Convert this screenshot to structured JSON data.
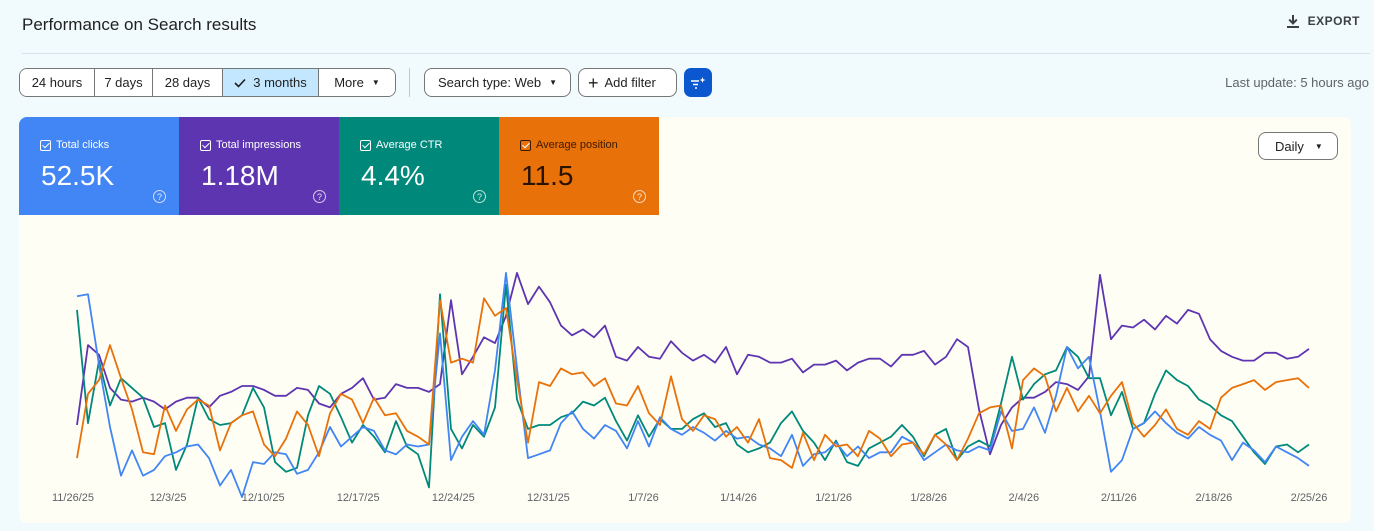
{
  "header": {
    "title": "Performance on Search results",
    "export_label": "EXPORT"
  },
  "toolbar": {
    "ranges": [
      {
        "label": "24 hours",
        "active": false
      },
      {
        "label": "7 days",
        "active": false
      },
      {
        "label": "28 days",
        "active": false
      },
      {
        "label": "3 months",
        "active": true
      },
      {
        "label": "More",
        "active": false
      }
    ],
    "search_type": "Search type: Web",
    "add_filter": "Add filter",
    "last_update": "Last update: 5 hours ago"
  },
  "metrics": [
    {
      "label": "Total clicks",
      "value": "52.5K",
      "color": "#4285f4"
    },
    {
      "label": "Total impressions",
      "value": "1.18M",
      "color": "#5e35b1"
    },
    {
      "label": "Average CTR",
      "value": "4.4%",
      "color": "#00897b"
    },
    {
      "label": "Average position",
      "value": "11.5",
      "color": "#e8710a"
    }
  ],
  "granularity": "Daily",
  "chart_data": {
    "type": "line",
    "x_tick_labels": [
      "11/26/25",
      "12/3/25",
      "12/10/25",
      "12/17/25",
      "12/24/25",
      "12/31/25",
      "1/7/26",
      "1/14/26",
      "1/21/26",
      "1/28/26",
      "2/4/26",
      "2/11/26",
      "2/18/26",
      "2/25/26"
    ],
    "y_axis_labels_shown": false,
    "grid": false,
    "series": [
      {
        "name": "Total impressions",
        "color": "#5e35b1",
        "values": [
          80,
          39,
          44,
          61,
          67,
          68,
          66,
          68,
          72,
          68,
          66,
          66,
          71,
          65,
          63,
          60,
          60,
          62,
          65,
          65,
          61,
          62,
          69,
          71,
          64,
          61,
          56,
          67,
          66,
          59,
          61,
          61,
          63,
          59,
          16,
          54,
          45,
          35,
          38,
          24,
          2,
          18,
          9,
          17,
          29,
          34,
          31,
          35,
          29,
          45,
          47,
          40,
          45,
          46,
          37,
          43,
          47,
          44,
          48,
          40,
          54,
          44,
          45,
          48,
          48,
          46,
          53,
          49,
          49,
          47,
          52,
          48,
          46,
          46,
          50,
          44,
          44,
          42,
          49,
          45,
          36,
          40,
          72,
          95,
          80,
          71,
          66,
          66,
          63,
          58,
          59,
          62,
          55,
          3,
          36,
          29,
          30,
          26,
          31,
          24,
          28,
          21,
          23,
          36,
          42,
          45,
          47,
          47,
          43,
          43,
          46,
          45,
          41
        ]
      },
      {
        "name": "Average CTR",
        "color": "#00897b",
        "values": [
          21,
          79,
          47,
          70,
          56,
          61,
          66,
          81,
          79,
          103,
          90,
          66,
          77,
          80,
          79,
          75,
          61,
          71,
          99,
          104,
          102,
          75,
          60,
          64,
          76,
          89,
          80,
          86,
          94,
          78,
          91,
          95,
          112,
          13,
          82,
          92,
          80,
          86,
          71,
          8,
          67,
          82,
          80,
          80,
          76,
          74,
          68,
          70,
          66,
          78,
          88,
          75,
          86,
          77,
          82,
          82,
          77,
          74,
          81,
          79,
          90,
          94,
          92,
          89,
          79,
          73,
          83,
          89,
          98,
          88,
          99,
          101,
          92,
          89,
          86,
          80,
          86,
          96,
          85,
          82,
          98,
          91,
          88,
          91,
          69,
          45,
          67,
          59,
          54,
          52,
          40,
          45,
          56,
          56,
          75,
          63,
          82,
          79,
          64,
          52,
          57,
          60,
          67,
          70,
          75,
          78,
          86,
          94,
          100,
          91,
          90,
          94,
          90
        ]
      },
      {
        "name": "Total clicks",
        "color": "#4285f4",
        "values": [
          14,
          13,
          49,
          81,
          106,
          93,
          106,
          103,
          96,
          94,
          91,
          90,
          97,
          111,
          103,
          117,
          99,
          100,
          94,
          95,
          105,
          103,
          94,
          81,
          91,
          86,
          81,
          83,
          93,
          95,
          90,
          91,
          90,
          33,
          98,
          86,
          78,
          85,
          52,
          2,
          51,
          97,
          95,
          93,
          79,
          73,
          82,
          87,
          80,
          83,
          92,
          78,
          91,
          76,
          82,
          85,
          81,
          84,
          88,
          83,
          87,
          86,
          90,
          92,
          96,
          85,
          101,
          95,
          94,
          89,
          96,
          91,
          97,
          94,
          94,
          86,
          89,
          98,
          94,
          90,
          93,
          94,
          91,
          93,
          73,
          83,
          82,
          71,
          84,
          65,
          40,
          51,
          45,
          73,
          104,
          98,
          82,
          79,
          73,
          79,
          84,
          87,
          81,
          85,
          88,
          98,
          89,
          93,
          99,
          91,
          94,
          97,
          101
        ]
      },
      {
        "name": "Average position",
        "color": "#e8710a",
        "values": [
          97,
          64,
          57,
          39,
          56,
          72,
          94,
          95,
          70,
          83,
          72,
          67,
          70,
          93,
          79,
          75,
          73,
          90,
          96,
          87,
          73,
          80,
          96,
          74,
          64,
          67,
          79,
          66,
          75,
          74,
          83,
          86,
          90,
          16,
          48,
          46,
          48,
          15,
          24,
          20,
          57,
          89,
          58,
          60,
          51,
          54,
          53,
          60,
          56,
          69,
          70,
          60,
          74,
          80,
          55,
          77,
          83,
          75,
          77,
          86,
          81,
          89,
          77,
          97,
          98,
          102,
          84,
          98,
          85,
          91,
          90,
          96,
          83,
          87,
          96,
          90,
          89,
          95,
          85,
          90,
          98,
          87,
          74,
          71,
          70,
          92,
          57,
          51,
          55,
          73,
          61,
          73,
          65,
          74,
          65,
          58,
          79,
          86,
          80,
          72,
          82,
          85,
          78,
          82,
          66,
          61,
          59,
          57,
          62,
          58,
          57,
          56,
          61
        ]
      }
    ]
  }
}
